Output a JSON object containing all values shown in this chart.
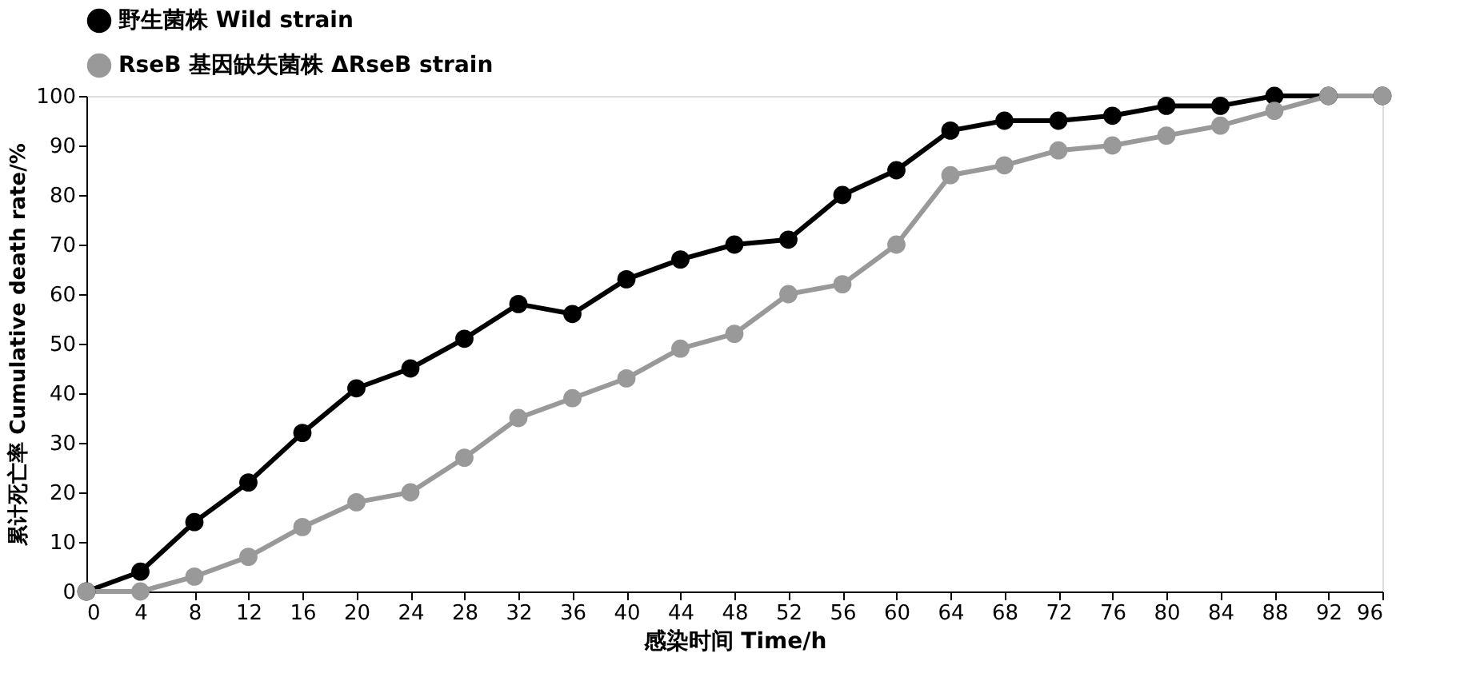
{
  "chart_data": {
    "type": "line",
    "xlabel": "感染时间 Time/h",
    "ylabel": "累计死亡率 Cumulative death rate/%",
    "x": [
      0,
      4,
      8,
      12,
      16,
      20,
      24,
      28,
      32,
      36,
      40,
      44,
      48,
      52,
      56,
      60,
      64,
      68,
      72,
      76,
      80,
      84,
      88,
      92,
      96
    ],
    "series": [
      {
        "name": "野生菌株 Wild strain",
        "color": "#000000",
        "values": [
          0,
          4,
          14,
          22,
          32,
          41,
          45,
          51,
          58,
          56,
          63,
          67,
          70,
          71,
          80,
          85,
          93,
          95,
          95,
          96,
          98,
          98,
          100,
          100,
          100
        ]
      },
      {
        "name": "RseB 基因缺失菌株 ΔRseB strain",
        "color": "#999999",
        "values": [
          0,
          0,
          3,
          7,
          13,
          18,
          20,
          27,
          35,
          39,
          43,
          49,
          52,
          60,
          62,
          70,
          84,
          86,
          89,
          90,
          92,
          94,
          97,
          100,
          100
        ]
      }
    ],
    "xlim": [
      0,
      96
    ],
    "xticks": [
      0,
      4,
      8,
      12,
      16,
      20,
      24,
      28,
      32,
      36,
      40,
      44,
      48,
      52,
      56,
      60,
      64,
      68,
      72,
      76,
      80,
      84,
      88,
      92,
      96
    ],
    "ylim": [
      0,
      100
    ],
    "yticks": [
      0,
      10,
      20,
      30,
      40,
      50,
      60,
      70,
      80,
      90,
      100
    ],
    "grid": false,
    "legend": "top left",
    "marker": "circle",
    "line_style": "solid"
  }
}
